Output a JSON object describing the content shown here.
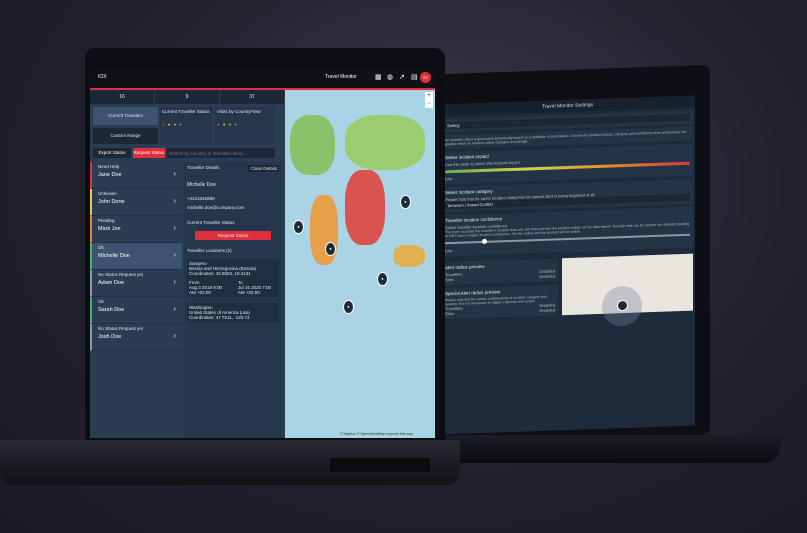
{
  "back": {
    "title": "Travel Monitor Settings",
    "section0": "Setting",
    "intro": "An incident radius is generated dynamically based on a multitude of parameters. Choose the incident impact, category and confidence level and preview the graphic result on incident radius changes accordingly.",
    "impact_head": "Select incident impact",
    "impact_sub": "Use the slider to select the incident impact",
    "impact_left": "Low",
    "category_head": "Select incident category",
    "category_sub": "Please note that for some incident categories no special alert is being triggered at all.",
    "category_value": "Terrorism / Armed Conflict",
    "confidence_head": "Traveller location confidence",
    "confidence_sub": "Select traveller location confidence.",
    "confidence_note": "The more accurate the traveller's location data are, the more precise the incident radius can be determined. Traveller that can be located via calendar tracking or GPS have a higher location confidence. Set the radius and the incident will be visible.",
    "confidence_left": "Low",
    "alert_head": "Alert radius preview",
    "alert_rows": [
      {
        "label": "Travellers",
        "value": "Disabled"
      },
      {
        "label": "Sites",
        "value": "Disabled"
      }
    ],
    "special_head": "Special Alert radius preview",
    "special_sub": "Please note that for certain combinations of incident category and severity, it is not necessary to trigger a special alert action.",
    "special_rows": [
      {
        "label": "Travellers",
        "value": "Disabled"
      },
      {
        "label": "Sites",
        "value": "Disabled"
      }
    ]
  },
  "front": {
    "topbar": {
      "brand": "IOX",
      "app_title": "Travel Monitor",
      "avatar": "ST"
    },
    "tabs": [
      "16",
      "9",
      "37"
    ],
    "tiles": {
      "current_travelers": "Current Travelers",
      "custom_range": "Custom Range"
    },
    "status_head": "Current Traveller Status",
    "country_head": "Visits by Country/Year",
    "buttons": {
      "export": "Export Status",
      "request": "Request Status"
    },
    "search_placeholder": "Search by Country or Traveller name...",
    "travellers": [
      {
        "status": "Need Help",
        "name": "Jane Doe",
        "color": "#e0303f"
      },
      {
        "status": "Unknown",
        "name": "John Done",
        "color": "#e8c840"
      },
      {
        "status": "Pending",
        "name": "Mark Joe",
        "color": "#e08a30"
      },
      {
        "status": "Ok",
        "name": "Michelle Doe",
        "color": "#4caf6a"
      },
      {
        "status": "No Status Request yet",
        "name": "Adam Doe",
        "color": "#8a98a8"
      },
      {
        "status": "Ok",
        "name": "Sarah Doe",
        "color": "#4caf6a"
      },
      {
        "status": "No Status Request yet",
        "name": "Josh Doe",
        "color": "#8a98a8"
      }
    ],
    "details": {
      "title": "Traveller Details",
      "close": "Close Details",
      "name": "Michelle Doe",
      "phone": "+4412345689",
      "email": "michelle.doe@company.com",
      "current_status": "Current Traveller Status",
      "request": "Request Status",
      "locations": "Traveller Locations (2)",
      "loc1_city": "Sarajevo",
      "loc1_country": "Bosnia and Herzegovina (Bosnia)",
      "loc1_coord": "Coordinates: 43.8563, 18.4131",
      "loc1_from": "From",
      "loc1_from_date": "Aug 3 2019 9:00 AM +02:00",
      "loc1_to": "To",
      "loc1_to_date": "Jul 16 2020 7:00 AM +02:00",
      "loc2_city": "Washington",
      "loc2_country": "United States of America (usa)",
      "loc2_coord": "Coordinates: 47.7511, -120.74"
    },
    "map_attrib": "© Mapbox © OpenStreetMap Improve this map"
  }
}
